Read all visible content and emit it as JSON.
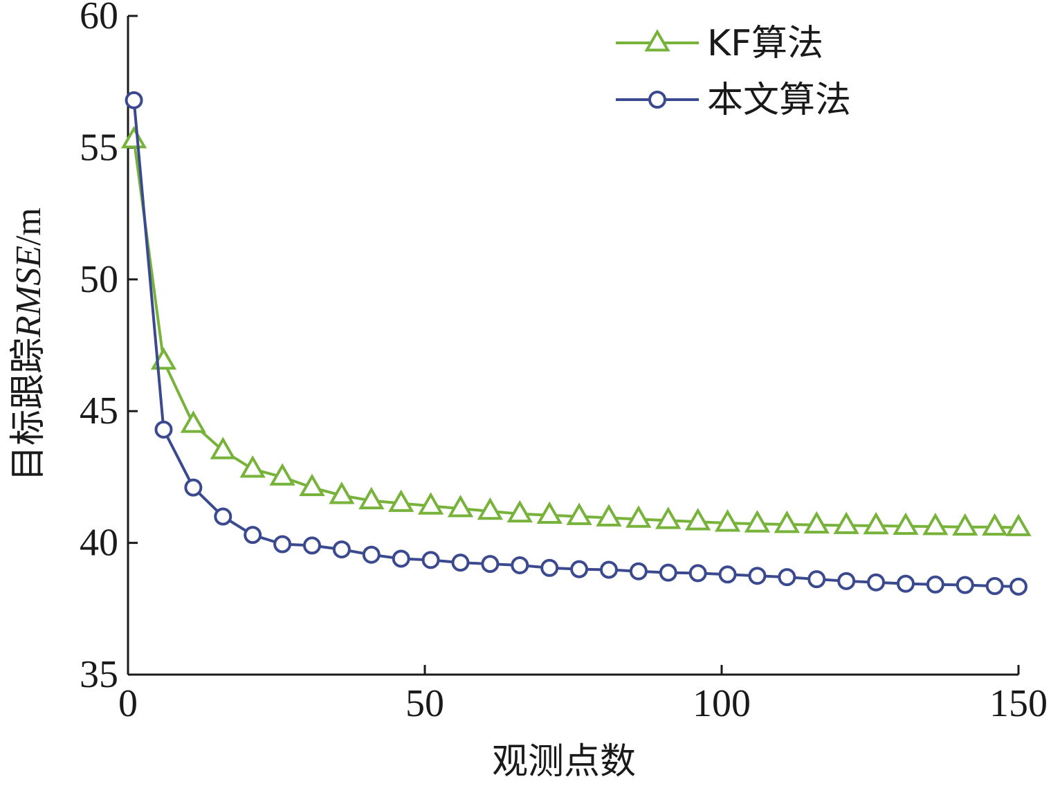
{
  "chart_data": {
    "type": "line",
    "title": "",
    "xlabel": "观测点数",
    "ylabel": {
      "prefix": "目标跟踪",
      "italic": "RMSE",
      "unit": "/m"
    },
    "xlim": [
      0,
      150
    ],
    "ylim": [
      35,
      60
    ],
    "xticks": [
      0,
      50,
      100,
      150
    ],
    "yticks": [
      35,
      40,
      45,
      50,
      55,
      60
    ],
    "grid": false,
    "legend_position": "top-right",
    "series": [
      {
        "name": "KF算法",
        "color": "#77b33b",
        "marker": "triangle",
        "x": [
          1,
          6,
          11,
          16,
          21,
          26,
          31,
          36,
          41,
          46,
          51,
          56,
          61,
          66,
          71,
          76,
          81,
          86,
          91,
          96,
          101,
          106,
          111,
          116,
          121,
          126,
          131,
          136,
          141,
          146,
          150
        ],
        "y": [
          55.3,
          46.9,
          44.5,
          43.5,
          42.8,
          42.5,
          42.1,
          41.8,
          41.6,
          41.5,
          41.4,
          41.3,
          41.2,
          41.1,
          41.05,
          41.0,
          40.95,
          40.9,
          40.85,
          40.8,
          40.75,
          40.72,
          40.7,
          40.68,
          40.66,
          40.65,
          40.63,
          40.62,
          40.6,
          40.6,
          40.58
        ]
      },
      {
        "name": "本文算法",
        "color": "#3b4a8f",
        "marker": "circle",
        "x": [
          1,
          6,
          11,
          16,
          21,
          26,
          31,
          36,
          41,
          46,
          51,
          56,
          61,
          66,
          71,
          76,
          81,
          86,
          91,
          96,
          101,
          106,
          111,
          116,
          121,
          126,
          131,
          136,
          141,
          146,
          150
        ],
        "y": [
          56.8,
          44.3,
          42.1,
          41.0,
          40.3,
          39.95,
          39.9,
          39.75,
          39.55,
          39.4,
          39.35,
          39.25,
          39.2,
          39.15,
          39.05,
          39.0,
          38.98,
          38.92,
          38.87,
          38.85,
          38.8,
          38.75,
          38.7,
          38.62,
          38.55,
          38.5,
          38.45,
          38.42,
          38.4,
          38.36,
          38.34
        ]
      }
    ]
  }
}
